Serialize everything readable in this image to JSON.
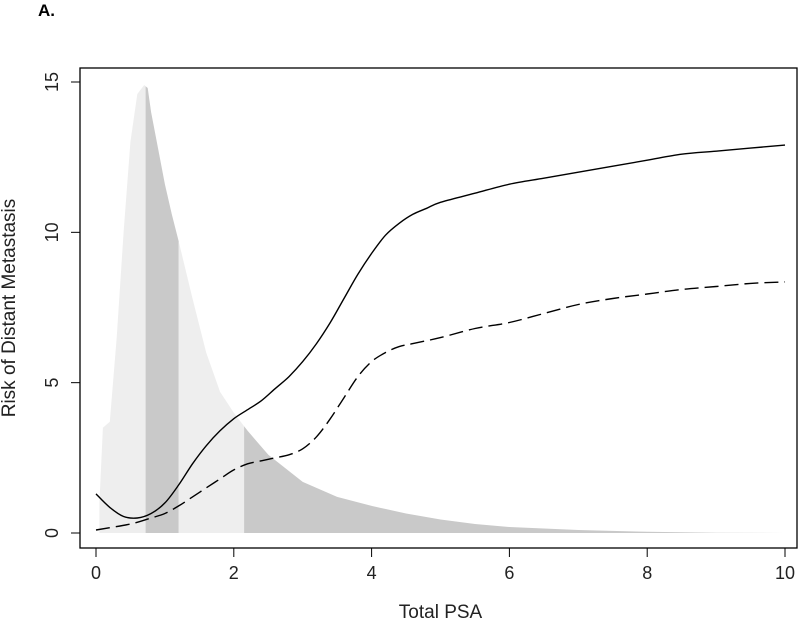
{
  "panel_label": "A.",
  "chart_data": {
    "type": "line",
    "title": "",
    "xlabel": "Total PSA",
    "ylabel": "Risk of Distant Metastasis",
    "xlim": [
      0,
      10
    ],
    "ylim": [
      0,
      15
    ],
    "xticks": [
      0,
      2,
      4,
      6,
      8,
      10
    ],
    "yticks": [
      0,
      5,
      10,
      15
    ],
    "grid": false,
    "legend": "none",
    "series": [
      {
        "style": "solid",
        "color": "#000000",
        "x": [
          0,
          0.2,
          0.4,
          0.6,
          0.8,
          1.0,
          1.2,
          1.4,
          1.6,
          1.8,
          2.0,
          2.2,
          2.4,
          2.6,
          2.8,
          3.0,
          3.2,
          3.4,
          3.6,
          3.8,
          4.0,
          4.2,
          4.4,
          4.6,
          4.8,
          5.0,
          5.5,
          6.0,
          6.5,
          7.0,
          7.5,
          8.0,
          8.5,
          9.0,
          9.5,
          10.0
        ],
        "y": [
          1.3,
          0.85,
          0.55,
          0.5,
          0.65,
          1.0,
          1.6,
          2.3,
          2.9,
          3.4,
          3.8,
          4.1,
          4.4,
          4.8,
          5.2,
          5.7,
          6.3,
          7.0,
          7.8,
          8.6,
          9.3,
          9.9,
          10.3,
          10.6,
          10.8,
          11.0,
          11.3,
          11.6,
          11.8,
          12.0,
          12.2,
          12.4,
          12.6,
          12.7,
          12.8,
          12.9
        ]
      },
      {
        "style": "dashed",
        "color": "#000000",
        "x": [
          0,
          0.5,
          0.8,
          1.0,
          1.2,
          1.4,
          1.6,
          1.8,
          2.0,
          2.2,
          2.4,
          2.6,
          2.8,
          3.0,
          3.2,
          3.4,
          3.6,
          3.8,
          4.0,
          4.2,
          4.4,
          4.6,
          5.0,
          5.5,
          6.0,
          6.5,
          7.0,
          7.5,
          8.0,
          8.5,
          9.0,
          9.5,
          10.0
        ],
        "y": [
          0.1,
          0.3,
          0.5,
          0.65,
          0.9,
          1.2,
          1.5,
          1.8,
          2.1,
          2.3,
          2.4,
          2.5,
          2.6,
          2.8,
          3.2,
          3.8,
          4.5,
          5.2,
          5.7,
          6.0,
          6.2,
          6.3,
          6.5,
          6.8,
          7.0,
          7.3,
          7.6,
          7.8,
          7.95,
          8.1,
          8.2,
          8.3,
          8.35
        ]
      }
    ],
    "density": {
      "type": "area",
      "fill_light": "#eeeeee",
      "fill_dark": "#c9c9c9",
      "x": [
        0.05,
        0.1,
        0.15,
        0.2,
        0.3,
        0.4,
        0.5,
        0.6,
        0.7,
        0.75,
        0.8,
        0.9,
        1.0,
        1.1,
        1.2,
        1.4,
        1.6,
        1.8,
        2.0,
        2.2,
        2.5,
        3.0,
        3.5,
        4.0,
        4.5,
        5.0,
        5.5,
        6.0,
        7.0,
        8.0,
        9.0,
        10.0
      ],
      "y": [
        1.0,
        3.5,
        3.6,
        3.7,
        6.5,
        10.0,
        13.0,
        14.6,
        14.9,
        14.8,
        14.0,
        12.8,
        11.6,
        10.6,
        9.7,
        7.8,
        6.0,
        4.7,
        4.0,
        3.4,
        2.6,
        1.7,
        1.2,
        0.9,
        0.65,
        0.45,
        0.3,
        0.2,
        0.1,
        0.04,
        0.01,
        0.0
      ],
      "bands": [
        {
          "from": 0.0,
          "to": 0.72,
          "shade": "light"
        },
        {
          "from": 0.72,
          "to": 1.2,
          "shade": "dark"
        },
        {
          "from": 1.2,
          "to": 2.15,
          "shade": "light"
        },
        {
          "from": 2.15,
          "to": 10.0,
          "shade": "dark"
        }
      ]
    }
  }
}
